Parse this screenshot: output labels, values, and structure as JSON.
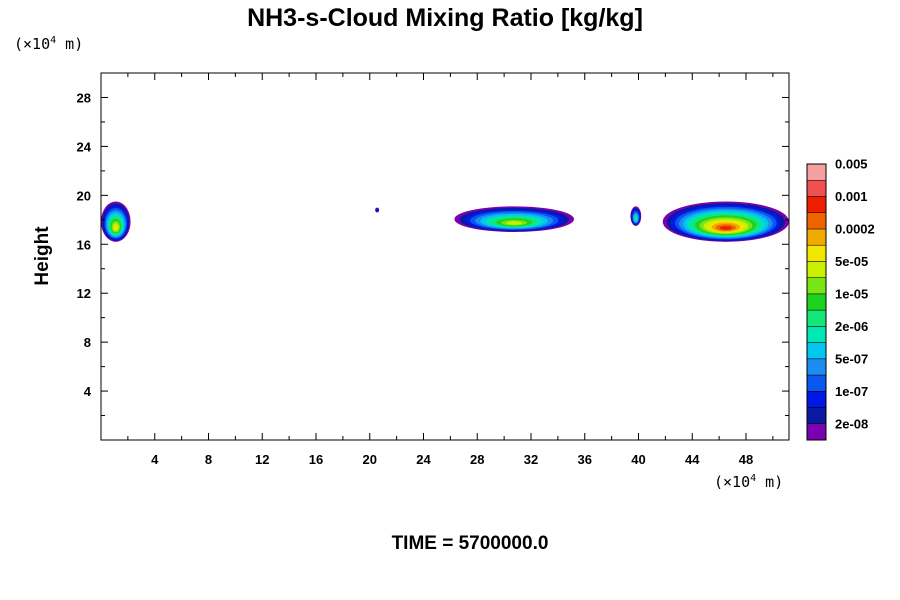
{
  "chart_data": {
    "type": "heatmap",
    "title": "NH3-s-Cloud Mixing Ratio [kg/kg]",
    "xlabel": "",
    "ylabel": "Height",
    "x_unit": "(×10",
    "x_unit_exp": "4",
    "x_unit_tail": " m)",
    "y_unit": "(×10",
    "y_unit_exp": "4",
    "y_unit_tail": " m)",
    "xlim": [
      0,
      51.2
    ],
    "ylim": [
      0,
      30
    ],
    "x_tick_labels": [
      "4",
      "8",
      "12",
      "16",
      "20",
      "24",
      "28",
      "32",
      "36",
      "40",
      "44",
      "48"
    ],
    "y_tick_labels": [
      "4",
      "8",
      "12",
      "16",
      "20",
      "24",
      "28"
    ],
    "time_label": "TIME = 5700000.0",
    "colorbar": {
      "colors": [
        "#7a00b0",
        "#0a1aa0",
        "#0018e6",
        "#0a56f0",
        "#1c8cf0",
        "#00c8f0",
        "#00e6b4",
        "#14e678",
        "#1ed21e",
        "#78e614",
        "#c8f000",
        "#f0e600",
        "#f0aa00",
        "#f06400",
        "#f01e00",
        "#f05050",
        "#f5a0a0"
      ],
      "labels": [
        "2e-08",
        "1e-07",
        "5e-07",
        "2e-06",
        "1e-05",
        "5e-05",
        "0.0002",
        "0.001",
        "0.005"
      ]
    },
    "clouds": [
      {
        "x": [
          0,
          2.2
        ],
        "y": [
          16.2,
          19.5
        ],
        "max_level": 11
      },
      {
        "x": [
          20.4,
          20.7
        ],
        "y": [
          18.6,
          19.0
        ],
        "max_level": 2
      },
      {
        "x": [
          26.3,
          35.2
        ],
        "y": [
          17.0,
          19.1
        ],
        "max_level": 10
      },
      {
        "x": [
          39.4,
          40.2
        ],
        "y": [
          17.5,
          19.1
        ],
        "max_level": 7
      },
      {
        "x": [
          41.8,
          51.2
        ],
        "y": [
          16.2,
          19.5
        ],
        "max_level": 14
      }
    ]
  }
}
